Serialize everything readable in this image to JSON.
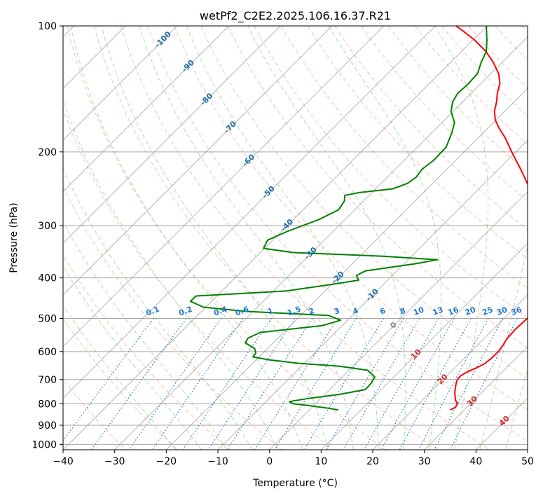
{
  "chart_data": {
    "type": "line",
    "subtype": "skew-t log-p diagram",
    "title": "wetPf2_C2E2.2025.106.16.37.R21",
    "xlabel": "Temperature (°C)",
    "ylabel": "Pressure (hPa)",
    "xlim": [
      -40,
      50
    ],
    "ylim": [
      1030,
      100
    ],
    "y_scale": "log (inverted)",
    "x_ticks": [
      "−40",
      "−30",
      "−20",
      "−10",
      "0",
      "10",
      "20",
      "30",
      "40",
      "50"
    ],
    "y_ticks": [
      "100",
      "200",
      "300",
      "400",
      "500",
      "600",
      "700",
      "800",
      "900",
      "1000"
    ],
    "grid": true,
    "skew_degrees": 45,
    "series": [
      {
        "color": "#ff0000",
        "points": [
          [
            827,
            27.3
          ],
          [
            815,
            27.8
          ],
          [
            800,
            27.5
          ],
          [
            785,
            26.5
          ],
          [
            760,
            25.2
          ],
          [
            740,
            24.3
          ],
          [
            715,
            23.3
          ],
          [
            700,
            22.8
          ],
          [
            685,
            22.7
          ],
          [
            670,
            23.3
          ],
          [
            655,
            24.3
          ],
          [
            640,
            25.0
          ],
          [
            620,
            25.3
          ],
          [
            600,
            25.3
          ],
          [
            580,
            25.0
          ],
          [
            560,
            24.5
          ],
          [
            530,
            24.3
          ],
          [
            500,
            24.5
          ],
          [
            480,
            25.0
          ],
          [
            460,
            25.6
          ],
          [
            450,
            25.8
          ],
          [
            440,
            25.4
          ],
          [
            425,
            24.0
          ],
          [
            405,
            22.8
          ],
          [
            390,
            21.4
          ],
          [
            375,
            19.8
          ],
          [
            360,
            18.4
          ],
          [
            345,
            17.1
          ],
          [
            330,
            15.7
          ],
          [
            315,
            13.7
          ],
          [
            300,
            11.2
          ],
          [
            280,
            7.7
          ],
          [
            260,
            3.5
          ],
          [
            240,
            -1.2
          ],
          [
            220,
            -5.7
          ],
          [
            200,
            -10.8
          ],
          [
            185,
            -14.8
          ],
          [
            175,
            -18.0
          ],
          [
            168,
            -20.1
          ],
          [
            160,
            -22.0
          ],
          [
            152,
            -23.4
          ],
          [
            145,
            -24.9
          ],
          [
            137,
            -26.4
          ],
          [
            130,
            -28.5
          ],
          [
            122,
            -31.8
          ],
          [
            115,
            -35.3
          ],
          [
            108,
            -39.7
          ],
          [
            103,
            -43.5
          ],
          [
            100,
            -46.0
          ]
        ]
      },
      {
        "color": "#008000",
        "points": [
          [
            827,
            5.6
          ],
          [
            818,
            2.8
          ],
          [
            808,
            -0.8
          ],
          [
            800,
            -4.3
          ],
          [
            790,
            -5.5
          ],
          [
            775,
            -2.0
          ],
          [
            760,
            2.7
          ],
          [
            740,
            6.9
          ],
          [
            715,
            6.8
          ],
          [
            690,
            6.3
          ],
          [
            665,
            3.6
          ],
          [
            650,
            -2.8
          ],
          [
            640,
            -11.1
          ],
          [
            628,
            -17.5
          ],
          [
            618,
            -21.2
          ],
          [
            605,
            -21.4
          ],
          [
            590,
            -22.5
          ],
          [
            572,
            -25.4
          ],
          [
            557,
            -25.8
          ],
          [
            540,
            -24.5
          ],
          [
            520,
            -13.8
          ],
          [
            505,
            -11.3
          ],
          [
            492,
            -14.6
          ],
          [
            481,
            -31.3
          ],
          [
            470,
            -40.4
          ],
          [
            455,
            -44.1
          ],
          [
            442,
            -44.0
          ],
          [
            430,
            -27.6
          ],
          [
            415,
            -20.2
          ],
          [
            405,
            -15.6
          ],
          [
            395,
            -16.9
          ],
          [
            385,
            -16.1
          ],
          [
            370,
            -7.7
          ],
          [
            362,
            -4.3
          ],
          [
            355,
            -15.5
          ],
          [
            348,
            -33.6
          ],
          [
            340,
            -40.2
          ],
          [
            325,
            -41.0
          ],
          [
            310,
            -38.9
          ],
          [
            290,
            -35.0
          ],
          [
            275,
            -33.1
          ],
          [
            262,
            -33.7
          ],
          [
            254,
            -34.7
          ],
          [
            250,
            -32.3
          ],
          [
            245,
            -26.7
          ],
          [
            238,
            -24.9
          ],
          [
            230,
            -24.4
          ],
          [
            220,
            -24.8
          ],
          [
            210,
            -24.3
          ],
          [
            195,
            -24.4
          ],
          [
            180,
            -26.1
          ],
          [
            170,
            -27.6
          ],
          [
            160,
            -30.4
          ],
          [
            152,
            -31.9
          ],
          [
            145,
            -32.6
          ],
          [
            138,
            -32.4
          ],
          [
            130,
            -32.6
          ],
          [
            122,
            -34.1
          ],
          [
            115,
            -35.2
          ],
          [
            108,
            -37.3
          ],
          [
            102,
            -39.4
          ],
          [
            100,
            -40.1
          ]
        ]
      }
    ],
    "reference_lines": {
      "isotherm_color": "#808080",
      "dry_adiabat_color": "#fc8d62",
      "moist_adiabat_color": "#66c266",
      "mixing_ratio_color": "#1f77d4",
      "isotherm_label_color": "#1f6fa8",
      "isotherm_labels_cold": [
        "-100",
        "-90",
        "-80",
        "-70",
        "-60",
        "-50",
        "-40",
        "-30",
        "-20",
        "-10"
      ],
      "isotherm_labels_warm": [
        "0",
        "10",
        "20",
        "30",
        "40"
      ],
      "isotherm_label_colors_warm": [
        "#888888",
        "#d62728",
        "#d62728",
        "#d62728",
        "#d62728"
      ],
      "mixing_ratio_labels": [
        "0.1",
        "0.2",
        "0.4",
        "0.6",
        "1",
        "1.5",
        "2",
        "3",
        "4",
        "6",
        "8",
        "10",
        "13",
        "16",
        "20",
        "25",
        "30",
        "36"
      ]
    }
  }
}
